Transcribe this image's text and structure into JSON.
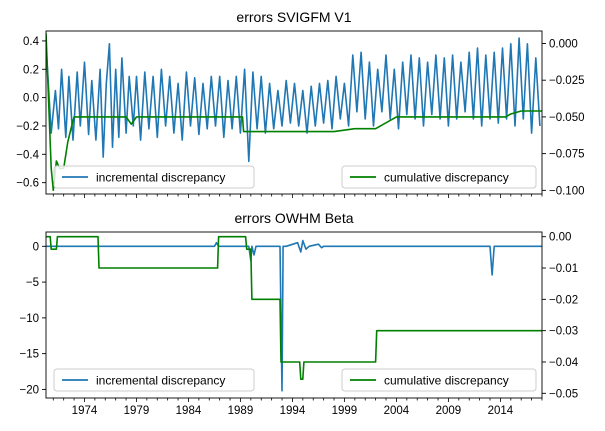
{
  "chart_data": [
    {
      "type": "line",
      "title": "errors SVIGFM V1",
      "x_range": [
        1970.3,
        2018.0
      ],
      "x_ticks": [
        1974,
        1979,
        1984,
        1989,
        1994,
        1999,
        2004,
        2009,
        2014
      ],
      "left_axis": {
        "ylim": [
          -0.68,
          0.47
        ],
        "ticks": [
          0.4,
          0.2,
          0.0,
          -0.2,
          -0.4,
          -0.6
        ],
        "tick_labels": [
          "0.4",
          "0.2",
          "0.0",
          "−0.2",
          "−0.4",
          "−0.6"
        ]
      },
      "right_axis": {
        "ylim": [
          -0.1025,
          0.0085
        ],
        "ticks": [
          0.0,
          -0.025,
          -0.05,
          -0.075,
          -0.1
        ],
        "tick_labels": [
          "0.000",
          "−0.025",
          "−0.050",
          "−0.075",
          "−0.100"
        ]
      },
      "series": [
        {
          "name": "incremental discrepancy",
          "axis": "left",
          "color": "#1f77b4",
          "x": [
            1970.3,
            1970.8,
            1971.2,
            1971.5,
            1971.8,
            1972.2,
            1972.5,
            1972.9,
            1973.3,
            1973.6,
            1974.0,
            1974.4,
            1974.7,
            1975.1,
            1975.5,
            1975.8,
            1976.1,
            1976.4,
            1976.7,
            1977.0,
            1977.3,
            1977.6,
            1978.0,
            1978.3,
            1978.7,
            1979.0,
            1979.4,
            1979.8,
            1980.2,
            1980.6,
            1981.0,
            1981.4,
            1981.8,
            1982.2,
            1982.6,
            1983.0,
            1983.4,
            1983.8,
            1984.2,
            1984.6,
            1985.0,
            1985.4,
            1985.8,
            1986.2,
            1986.6,
            1987.0,
            1987.4,
            1987.8,
            1988.2,
            1988.6,
            1989.0,
            1989.4,
            1989.8,
            1990.2,
            1990.6,
            1991.0,
            1991.4,
            1991.8,
            1992.2,
            1992.6,
            1993.0,
            1993.4,
            1993.8,
            1994.2,
            1994.6,
            1995.0,
            1995.4,
            1995.8,
            1996.2,
            1996.6,
            1997.0,
            1997.4,
            1997.8,
            1998.2,
            1998.6,
            1999.0,
            1999.4,
            1999.8,
            2000.2,
            2000.6,
            2001.0,
            2001.4,
            2001.8,
            2002.2,
            2002.6,
            2003.0,
            2003.4,
            2003.8,
            2004.2,
            2004.6,
            2005.0,
            2005.4,
            2005.8,
            2006.2,
            2006.6,
            2007.0,
            2007.4,
            2007.8,
            2008.2,
            2008.6,
            2009.0,
            2009.4,
            2009.8,
            2010.2,
            2010.6,
            2011.0,
            2011.4,
            2011.8,
            2012.2,
            2012.6,
            2013.0,
            2013.4,
            2013.8,
            2014.2,
            2014.6,
            2015.0,
            2015.4,
            2015.8,
            2016.2,
            2016.6,
            2017.0,
            2017.4,
            2017.8
          ],
          "y": [
            0.38,
            -0.25,
            0.05,
            -0.22,
            0.2,
            -0.28,
            0.15,
            -0.3,
            0.18,
            -0.2,
            0.25,
            -0.26,
            0.12,
            -0.3,
            0.2,
            -0.42,
            0.1,
            0.38,
            -0.35,
            0.2,
            -0.28,
            0.28,
            -0.25,
            0.15,
            -0.2,
            0.15,
            -0.3,
            0.18,
            -0.22,
            0.15,
            -0.28,
            0.2,
            -0.2,
            0.15,
            -0.25,
            0.1,
            -0.3,
            0.18,
            -0.2,
            0.14,
            -0.26,
            0.1,
            -0.22,
            0.15,
            -0.2,
            0.15,
            -0.28,
            0.12,
            -0.22,
            0.15,
            -0.25,
            0.2,
            -0.45,
            0.18,
            -0.22,
            0.15,
            -0.25,
            0.1,
            -0.22,
            0.05,
            -0.2,
            0.12,
            -0.18,
            0.1,
            -0.2,
            0.05,
            -0.25,
            0.08,
            -0.2,
            0.1,
            -0.18,
            0.12,
            -0.22,
            0.15,
            -0.15,
            0.1,
            -0.2,
            0.3,
            -0.1,
            0.32,
            -0.15,
            0.25,
            -0.2,
            0.2,
            -0.1,
            0.3,
            -0.15,
            0.2,
            -0.22,
            0.25,
            -0.12,
            0.3,
            -0.15,
            0.28,
            -0.2,
            0.25,
            -0.12,
            0.3,
            -0.15,
            0.28,
            -0.2,
            0.3,
            -0.15,
            0.25,
            -0.1,
            0.32,
            -0.15,
            0.35,
            -0.2,
            0.3,
            -0.15,
            0.32,
            -0.18,
            0.35,
            -0.15,
            0.38,
            -0.2,
            0.42,
            -0.15,
            0.38,
            -0.25,
            0.28,
            -0.2
          ]
        },
        {
          "name": "cumulative discrepancy",
          "axis": "right",
          "color": "#008000",
          "x": [
            1970.3,
            1970.5,
            1970.8,
            1971.0,
            1971.3,
            1971.6,
            1972.0,
            1972.4,
            1972.7,
            1973.0,
            1973.5,
            1974.0,
            1974.5,
            1975.0,
            1976.0,
            1977.0,
            1978.0,
            1978.5,
            1979.0,
            1979.5,
            1980.0,
            1983.0,
            1986.0,
            1988.0,
            1989.2,
            1989.3,
            1990.0,
            1992.0,
            1994.0,
            1996.0,
            1998.0,
            2000.0,
            2002.0,
            2004.0,
            2006.0,
            2008.0,
            2010.0,
            2012.0,
            2014.0,
            2014.5,
            2015.0,
            2016.0,
            2018.0
          ],
          "y": [
            0.007,
            -0.03,
            -0.085,
            -0.1,
            -0.08,
            -0.085,
            -0.085,
            -0.067,
            -0.058,
            -0.05,
            -0.05,
            -0.05,
            -0.05,
            -0.05,
            -0.05,
            -0.05,
            -0.05,
            -0.055,
            -0.05,
            -0.05,
            -0.05,
            -0.05,
            -0.05,
            -0.05,
            -0.05,
            -0.06,
            -0.06,
            -0.06,
            -0.06,
            -0.06,
            -0.06,
            -0.058,
            -0.058,
            -0.05,
            -0.05,
            -0.05,
            -0.05,
            -0.05,
            -0.05,
            -0.05,
            -0.048,
            -0.046,
            -0.046
          ]
        }
      ]
    },
    {
      "type": "line",
      "title": "errors OWHM Beta",
      "x_range": [
        1970.3,
        2018.0
      ],
      "x_ticks": [
        1974,
        1979,
        1984,
        1989,
        1994,
        1999,
        2004,
        2009,
        2014
      ],
      "left_axis": {
        "ylim": [
          -21.2,
          2.0
        ],
        "ticks": [
          0,
          -5,
          -10,
          -15,
          -20
        ],
        "tick_labels": [
          "0",
          "−5",
          "−10",
          "−15",
          "−20"
        ]
      },
      "right_axis": {
        "ylim": [
          -0.0515,
          0.0015
        ],
        "ticks": [
          0.0,
          -0.01,
          -0.02,
          -0.03,
          -0.04,
          -0.05
        ],
        "tick_labels": [
          "0.00",
          "−0.01",
          "−0.02",
          "−0.03",
          "−0.04",
          "−0.05"
        ]
      },
      "series": [
        {
          "name": "incremental discrepancy",
          "axis": "left",
          "color": "#1f77b4",
          "x": [
            1970.3,
            1986.5,
            1986.7,
            1986.9,
            1988.0,
            1989.8,
            1990.0,
            1990.1,
            1990.3,
            1990.5,
            1992.8,
            1993.0,
            1993.1,
            1993.4,
            1994.5,
            1994.8,
            1995.0,
            1995.3,
            1995.6,
            1996.5,
            1996.8,
            1997.0,
            2013.0,
            2013.2,
            2013.4,
            2018.0
          ],
          "y": [
            0,
            0,
            0.5,
            0,
            0,
            0,
            -2.0,
            0,
            -1.2,
            0,
            0,
            -20.2,
            0,
            0,
            0.5,
            -0.8,
            0.8,
            -0.4,
            0,
            0.3,
            -0.2,
            0,
            0,
            -4.0,
            0,
            0
          ]
        },
        {
          "name": "cumulative discrepancy",
          "axis": "right",
          "color": "#008000",
          "x": [
            1970.3,
            1970.7,
            1970.8,
            1971.3,
            1971.4,
            1975.3,
            1975.4,
            1986.8,
            1986.9,
            1989.5,
            1989.6,
            1990.0,
            1990.1,
            1992.8,
            1992.9,
            1994.4,
            1994.5,
            1994.7,
            1994.8,
            1995.0,
            1995.1,
            2002.0,
            2002.1,
            2018.0
          ],
          "y": [
            0.0,
            0.0,
            -0.004,
            -0.004,
            0.0,
            0.0,
            -0.01,
            -0.01,
            0.0,
            0.0,
            -0.004,
            -0.004,
            -0.02,
            -0.02,
            -0.04,
            -0.04,
            -0.04,
            -0.04,
            -0.0455,
            -0.0455,
            -0.04,
            -0.04,
            -0.03,
            -0.03
          ]
        }
      ]
    }
  ]
}
